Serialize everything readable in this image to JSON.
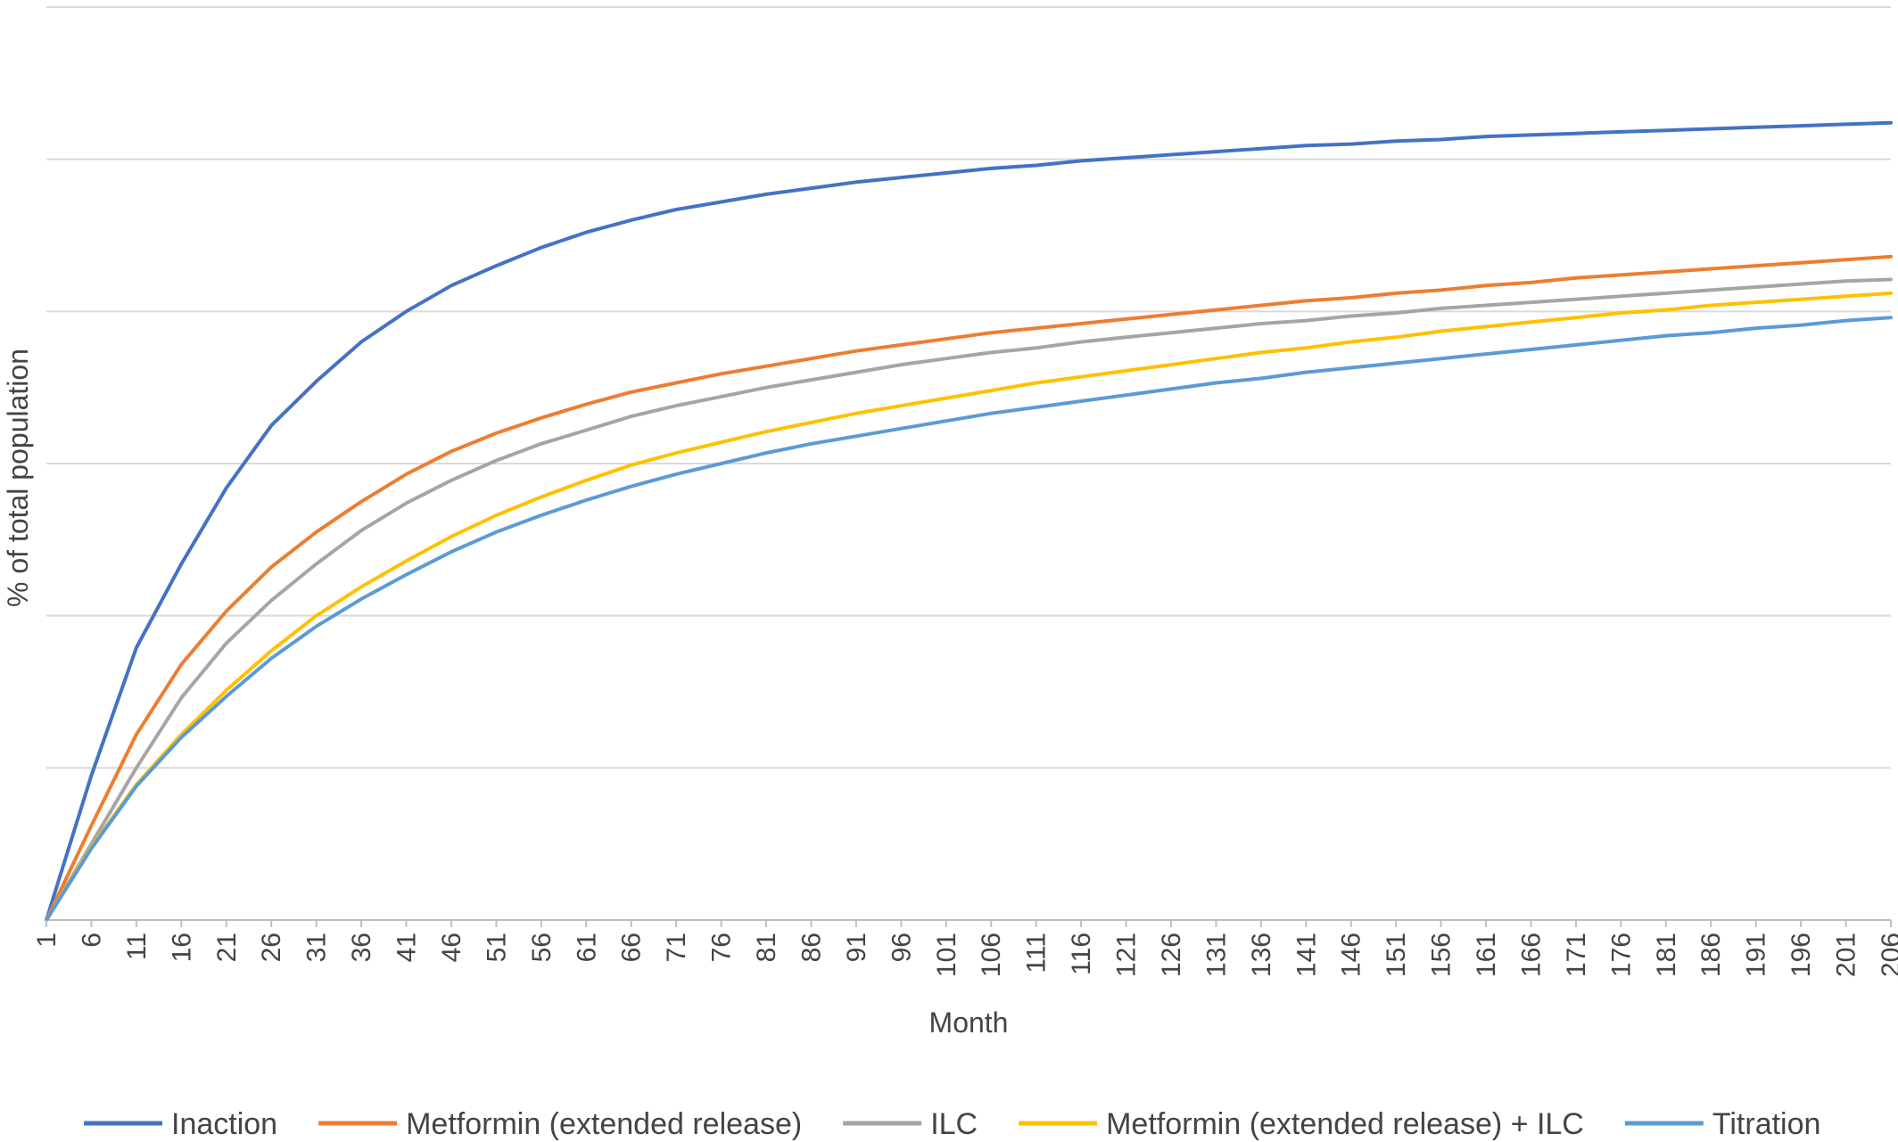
{
  "chart_data": {
    "type": "line",
    "title": "",
    "xlabel": "Month",
    "ylabel": "% of total population",
    "x_ticks": [
      "1",
      "6",
      "11",
      "16",
      "21",
      "26",
      "31",
      "36",
      "41",
      "46",
      "51",
      "56",
      "61",
      "66",
      "71",
      "76",
      "81",
      "86",
      "91",
      "96",
      "101",
      "106",
      "111",
      "116",
      "121",
      "126",
      "131",
      "136",
      "141",
      "146",
      "151",
      "156",
      "161",
      "166",
      "171",
      "176",
      "181",
      "186",
      "191",
      "196",
      "201",
      "206"
    ],
    "xlim": [
      1,
      206
    ],
    "ylim": [
      0,
      6
    ],
    "y_tick_labels_shown": false,
    "grid": "horizontal",
    "legend": "bottom",
    "x": [
      1,
      6,
      11,
      16,
      21,
      26,
      31,
      36,
      41,
      46,
      51,
      56,
      61,
      66,
      71,
      76,
      81,
      86,
      91,
      96,
      101,
      106,
      111,
      116,
      121,
      126,
      131,
      136,
      141,
      146,
      151,
      156,
      161,
      166,
      171,
      176,
      181,
      186,
      191,
      196,
      201,
      206
    ],
    "series": [
      {
        "name": "Inaction",
        "color": "#4472c4",
        "values": [
          0.0,
          0.95,
          1.79,
          2.34,
          2.84,
          3.25,
          3.54,
          3.8,
          4.0,
          4.17,
          4.3,
          4.42,
          4.52,
          4.6,
          4.67,
          4.72,
          4.77,
          4.81,
          4.85,
          4.88,
          4.91,
          4.94,
          4.96,
          4.99,
          5.01,
          5.03,
          5.05,
          5.07,
          5.09,
          5.1,
          5.12,
          5.13,
          5.15,
          5.16,
          5.17,
          5.18,
          5.19,
          5.2,
          5.21,
          5.22,
          5.23,
          5.24
        ]
      },
      {
        "name": "Metformin (extended release)",
        "color": "#ed7d31",
        "values": [
          0.0,
          0.62,
          1.22,
          1.68,
          2.03,
          2.32,
          2.55,
          2.75,
          2.93,
          3.08,
          3.2,
          3.3,
          3.39,
          3.47,
          3.53,
          3.59,
          3.64,
          3.69,
          3.74,
          3.78,
          3.82,
          3.86,
          3.89,
          3.92,
          3.95,
          3.98,
          4.01,
          4.04,
          4.07,
          4.09,
          4.12,
          4.14,
          4.17,
          4.19,
          4.22,
          4.24,
          4.26,
          4.28,
          4.3,
          4.32,
          4.34,
          4.36
        ]
      },
      {
        "name": "ILC",
        "color": "#a5a5a5",
        "values": [
          0.0,
          0.5,
          1.0,
          1.46,
          1.82,
          2.1,
          2.34,
          2.56,
          2.74,
          2.89,
          3.02,
          3.13,
          3.22,
          3.31,
          3.38,
          3.44,
          3.5,
          3.55,
          3.6,
          3.65,
          3.69,
          3.73,
          3.76,
          3.8,
          3.83,
          3.86,
          3.89,
          3.92,
          3.94,
          3.97,
          3.99,
          4.02,
          4.04,
          4.06,
          4.08,
          4.1,
          4.12,
          4.14,
          4.16,
          4.18,
          4.2,
          4.21
        ]
      },
      {
        "name": "Metformin (extended release) + ILC",
        "color": "#ffc000",
        "values": [
          0.0,
          0.48,
          0.89,
          1.22,
          1.51,
          1.77,
          2.0,
          2.19,
          2.36,
          2.52,
          2.66,
          2.78,
          2.89,
          2.99,
          3.07,
          3.14,
          3.21,
          3.27,
          3.33,
          3.38,
          3.43,
          3.48,
          3.53,
          3.57,
          3.61,
          3.65,
          3.69,
          3.73,
          3.76,
          3.8,
          3.83,
          3.87,
          3.9,
          3.93,
          3.96,
          3.99,
          4.01,
          4.04,
          4.06,
          4.08,
          4.1,
          4.12
        ]
      },
      {
        "name": "Titration",
        "color": "#5b9bd5",
        "values": [
          0.0,
          0.47,
          0.88,
          1.2,
          1.47,
          1.72,
          1.93,
          2.11,
          2.27,
          2.42,
          2.55,
          2.66,
          2.76,
          2.85,
          2.93,
          3.0,
          3.07,
          3.13,
          3.18,
          3.23,
          3.28,
          3.33,
          3.37,
          3.41,
          3.45,
          3.49,
          3.53,
          3.56,
          3.6,
          3.63,
          3.66,
          3.69,
          3.72,
          3.75,
          3.78,
          3.81,
          3.84,
          3.86,
          3.89,
          3.91,
          3.94,
          3.96
        ]
      }
    ]
  }
}
